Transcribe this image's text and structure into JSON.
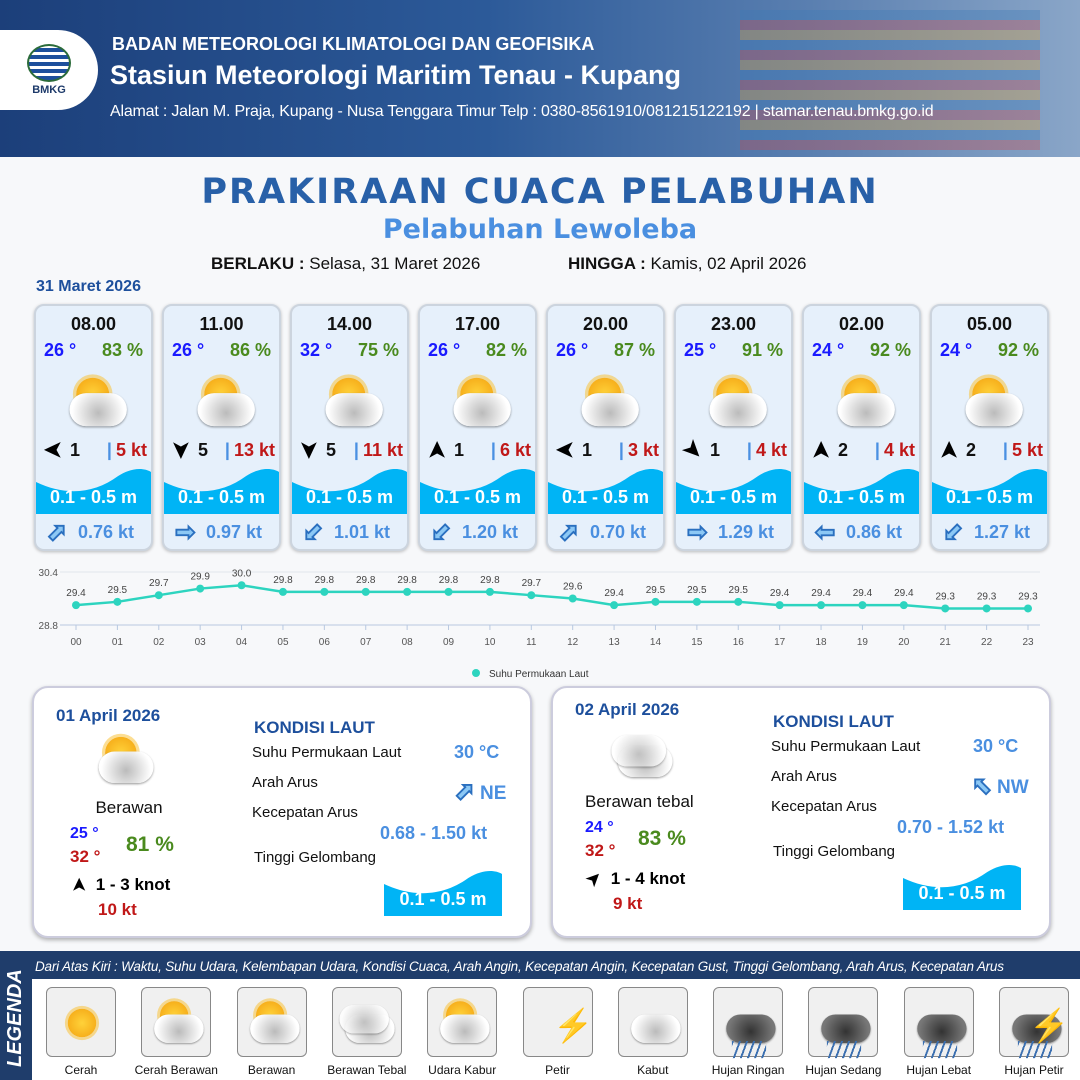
{
  "header": {
    "org": "BADAN METEOROLOGI KLIMATOLOGI DAN GEOFISIKA",
    "station": "Stasiun Meteorologi Maritim Tenau - Kupang",
    "address": "Alamat : Jalan M. Praja, Kupang - Nusa Tenggara Timur Telp : 0380-8561910/081215122192  | stamar.tenau.bmkg.go.id",
    "logo_text": "BMKG"
  },
  "title": "PRAKIRAAN CUACA PELABUHAN",
  "subtitle": "Pelabuhan Lewoleba",
  "validity": {
    "from_label": "BERLAKU :",
    "from": "Selasa, 31 Maret 2026",
    "to_label": "HINGGA :",
    "to": "Kamis, 02 April 2026"
  },
  "day1": "31 Maret 2026",
  "cards": [
    {
      "time": "08.00",
      "temp": "26 °",
      "hum": "83 %",
      "wx": "cerah-berawan",
      "wind_dir": "W",
      "wind_speed": "1",
      "gust": "5 kt",
      "wave": "0.1 - 0.5 m",
      "cur_dir": "NE",
      "cur": "0.76 kt"
    },
    {
      "time": "11.00",
      "temp": "26 °",
      "hum": "86 %",
      "wx": "cerah-berawan",
      "wind_dir": "S",
      "wind_speed": "5",
      "gust": "13 kt",
      "wave": "0.1 - 0.5 m",
      "cur_dir": "E",
      "cur": "0.97 kt"
    },
    {
      "time": "14.00",
      "temp": "32 °",
      "hum": "75 %",
      "wx": "berawan",
      "wind_dir": "S",
      "wind_speed": "5",
      "gust": "11 kt",
      "wave": "0.1 - 0.5 m",
      "cur_dir": "SW",
      "cur": "1.01 kt"
    },
    {
      "time": "17.00",
      "temp": "26 °",
      "hum": "82 %",
      "wx": "berawan",
      "wind_dir": "N",
      "wind_speed": "1",
      "gust": "6 kt",
      "wave": "0.1 - 0.5 m",
      "cur_dir": "SW",
      "cur": "1.20 kt"
    },
    {
      "time": "20.00",
      "temp": "26 °",
      "hum": "87 %",
      "wx": "berawan",
      "wind_dir": "W",
      "wind_speed": "1",
      "gust": "3 kt",
      "wave": "0.1 - 0.5 m",
      "cur_dir": "NE",
      "cur": "0.70 kt"
    },
    {
      "time": "23.00",
      "temp": "25 °",
      "hum": "91 %",
      "wx": "berawan",
      "wind_dir": "SE",
      "wind_speed": "1",
      "gust": "4 kt",
      "wave": "0.1 - 0.5 m",
      "cur_dir": "E",
      "cur": "1.29 kt"
    },
    {
      "time": "02.00",
      "temp": "24 °",
      "hum": "92 %",
      "wx": "berawan",
      "wind_dir": "N",
      "wind_speed": "2",
      "gust": "4 kt",
      "wave": "0.1 - 0.5 m",
      "cur_dir": "W",
      "cur": "0.86 kt"
    },
    {
      "time": "05.00",
      "temp": "24 °",
      "hum": "92 %",
      "wx": "berawan",
      "wind_dir": "N",
      "wind_speed": "2",
      "gust": "5 kt",
      "wave": "0.1 - 0.5 m",
      "cur_dir": "SW",
      "cur": "1.27 kt"
    }
  ],
  "colors": {
    "temp": "#1a1aff",
    "hum": "#4a8a1e",
    "gust": "#c01818",
    "wave": "#00b4f5",
    "line": "#2dd4bf",
    "title": "#2860a8"
  },
  "chart_data": {
    "type": "line",
    "categories": [
      "00",
      "01",
      "02",
      "03",
      "04",
      "05",
      "06",
      "07",
      "08",
      "09",
      "10",
      "11",
      "12",
      "13",
      "14",
      "15",
      "16",
      "17",
      "18",
      "19",
      "20",
      "21",
      "22",
      "23"
    ],
    "series": [
      {
        "name": "Suhu Permukaan Laut",
        "values": [
          29.4,
          29.5,
          29.7,
          29.9,
          30.0,
          29.8,
          29.8,
          29.8,
          29.8,
          29.8,
          29.8,
          29.7,
          29.6,
          29.4,
          29.5,
          29.5,
          29.5,
          29.4,
          29.4,
          29.4,
          29.4,
          29.3,
          29.3,
          29.3
        ]
      }
    ],
    "yticks": [
      "30.4",
      "28.8"
    ],
    "ylim": [
      28.8,
      30.4
    ],
    "legend": "bottom",
    "grid": true
  },
  "panels": [
    {
      "date": "01 April 2026",
      "wx": "berawan",
      "cond": "Berawan",
      "tmin": "25 °",
      "tmax": "32 °",
      "hum": "81 %",
      "wind": "1  - 3 knot",
      "wind_dir": "N",
      "gust": "10 kt",
      "sea_title": "KONDISI LAUT",
      "sst_label": "Suhu Permukaan Laut",
      "sst": "30 °C",
      "dir_label": "Arah Arus",
      "cur_dir": "NE",
      "spd_label": "Kecepatan Arus",
      "spd": "0.68 - 1.50 kt",
      "wave_label": "Tinggi Gelombang",
      "wave": "0.1 - 0.5 m"
    },
    {
      "date": "02 April 2026",
      "wx": "berawan-tebal",
      "cond": "Berawan tebal",
      "tmin": "24 °",
      "tmax": "32 °",
      "hum": "83 %",
      "wind": "1  - 4 knot",
      "wind_dir": "NE",
      "gust": "9 kt",
      "sea_title": "KONDISI LAUT",
      "sst_label": "Suhu Permukaan Laut",
      "sst": "30 °C",
      "dir_label": "Arah Arus",
      "cur_dir": "NW",
      "spd_label": "Kecepatan Arus",
      "spd": "0.70 - 1.52 kt",
      "wave_label": "Tinggi Gelombang",
      "wave": "0.1 - 0.5 m"
    }
  ],
  "legend": {
    "title": "LEGENDA",
    "description": "Dari Atas Kiri : Waktu, Suhu Udara, Kelembapan Udara, Kondisi Cuaca, Arah Angin, Kecepatan Angin, Kecepatan Gust, Tinggi Gelombang, Arah Arus, Kecepatan Arus",
    "items": [
      "Cerah",
      "Cerah Berawan",
      "Berawan",
      "Berawan Tebal",
      "Udara Kabur",
      "Petir",
      "Kabut",
      "Hujan Ringan",
      "Hujan Sedang",
      "Hujan Lebat",
      "Hujan Petir"
    ]
  }
}
